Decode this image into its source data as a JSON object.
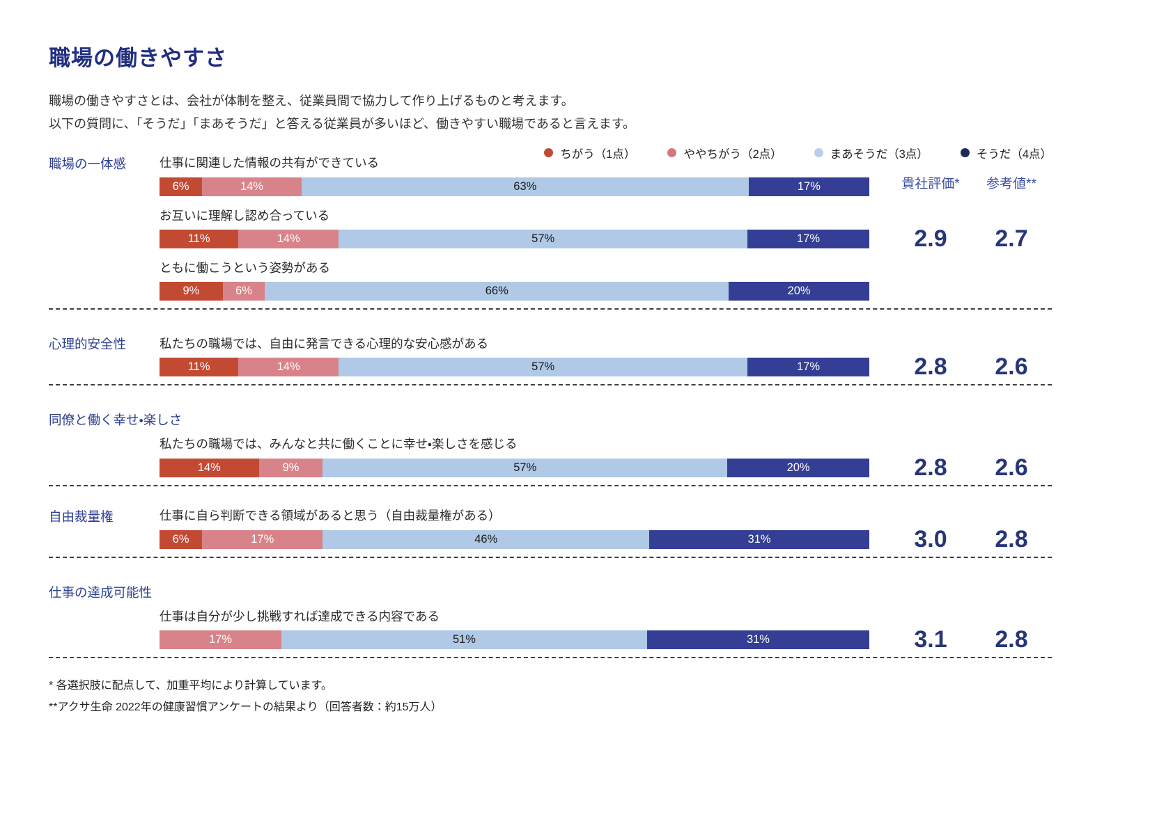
{
  "page": {
    "title": "職場の働きやすさ",
    "intro_line1": "職場の働きやすさとは、会社が体制を整え、従業員間で協力して作り上げるものと考えます。",
    "intro_line2": "以下の質問に、「そうだ」「まあそうだ」と答える従業員が多いほど、働きやすい職場であると言えます。"
  },
  "footnotes": {
    "line1": "* 各選択肢に配点して、加重平均により計算しています。",
    "line2": "**アクサ生命 2022年の健康習慣アンケートの結果より（回答者数：約15万人）"
  },
  "chart_data": {
    "type": "bar",
    "stacked": true,
    "orientation": "horizontal",
    "unit": "percent",
    "score_columns": [
      "貴社評価*",
      "参考値**"
    ],
    "categories_legend": [
      {
        "label": "ちがう（1点）",
        "dot_color": "#C04A33",
        "bar_color": "#C24A33",
        "label_on_bar": "white"
      },
      {
        "label": "ややちがう（2点）",
        "dot_color": "#D4787F",
        "bar_color": "#D8838A",
        "label_on_bar": "white"
      },
      {
        "label": "まあそうだ（3点）",
        "dot_color": "#B7CFE9",
        "bar_color": "#AFC9E6",
        "label_on_bar": "dark"
      },
      {
        "label": "そうだ（4点）",
        "dot_color": "#1E2B57",
        "bar_color": "#333E94",
        "label_on_bar": "white"
      }
    ],
    "sections": [
      {
        "label": "職場の一体感",
        "label_placement": "gutter",
        "score_anchor": 1,
        "company_score": "2.9",
        "reference_score": "2.7",
        "questions": [
          {
            "text": "仕事に関連した情報の共有ができている",
            "values": [
              6,
              14,
              63,
              17
            ]
          },
          {
            "text": "お互いに理解し認め合っている",
            "values": [
              11,
              14,
              57,
              17
            ]
          },
          {
            "text": "ともに働こうという姿勢がある",
            "values": [
              9,
              6,
              66,
              20
            ]
          }
        ]
      },
      {
        "label": "心理的安全性",
        "label_placement": "gutter",
        "score_anchor": 0,
        "company_score": "2.8",
        "reference_score": "2.6",
        "questions": [
          {
            "text": "私たちの職場では、自由に発言できる心理的な安心感がある",
            "values": [
              11,
              14,
              57,
              17
            ]
          }
        ]
      },
      {
        "label": "同僚と働く幸せ・楽しさ",
        "label_placement": "own-line",
        "score_anchor": 0,
        "company_score": "2.8",
        "reference_score": "2.6",
        "questions": [
          {
            "text": "私たちの職場では、みんなと共に働くことに幸せ・楽しさを感じる",
            "values": [
              14,
              9,
              57,
              20
            ]
          }
        ]
      },
      {
        "label": "自由裁量権",
        "label_placement": "gutter",
        "score_anchor": 0,
        "company_score": "3.0",
        "reference_score": "2.8",
        "questions": [
          {
            "text": "仕事に自ら判断できる領域があると思う（自由裁量権がある）",
            "values": [
              6,
              17,
              46,
              31
            ]
          }
        ]
      },
      {
        "label": "仕事の達成可能性",
        "label_placement": "own-line",
        "score_anchor": 0,
        "company_score": "3.1",
        "reference_score": "2.8",
        "questions": [
          {
            "text": "仕事は自分が少し挑戦すれば達成できる内容である",
            "values": [
              0,
              17,
              51,
              31
            ]
          }
        ]
      }
    ]
  }
}
